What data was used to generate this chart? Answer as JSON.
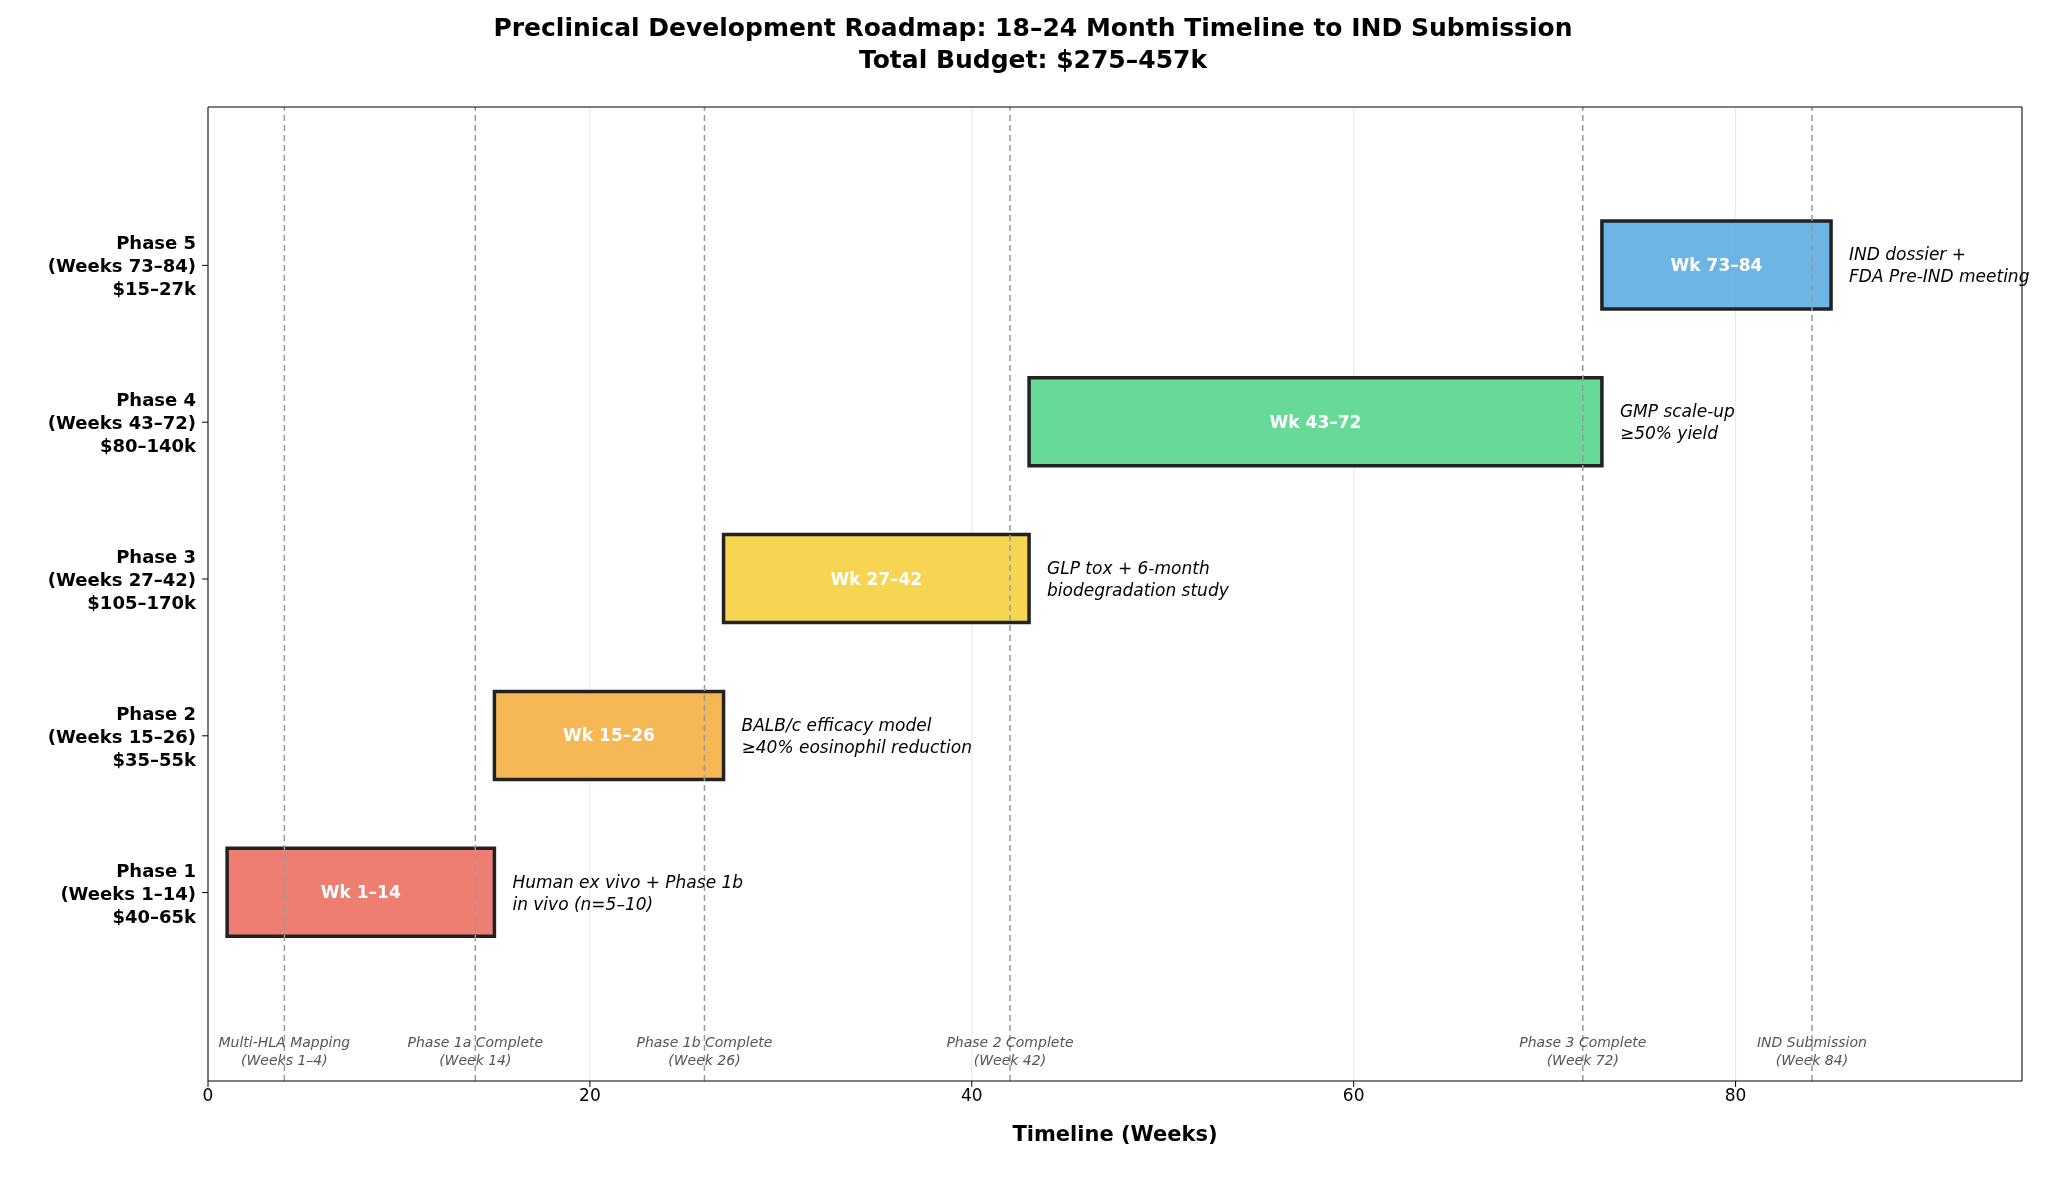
{
  "chart_data": {
    "type": "bar",
    "orientation": "horizontal",
    "title": "Preclinical Development Roadmap: 18–24 Month Timeline to IND Submission",
    "subtitle": "Total Budget: $275–457k",
    "xlabel": "Timeline (Weeks)",
    "categories": [
      "Phase 5\n(Weeks 73–84)\n$15–27k",
      "Phase 4\n(Weeks 43–72)\n$80–140k",
      "Phase 3\n(Weeks 27–42)\n$105–170k",
      "Phase 2\n(Weeks 15–26)\n$35–55k",
      "Phase 1\n(Weeks 1–14)\n$40–65k"
    ],
    "base": [
      73,
      43,
      27,
      15,
      1
    ],
    "values": [
      12,
      30,
      16,
      12,
      14
    ],
    "colors": [
      "#5dade2",
      "#58d68d",
      "#f4d03f",
      "#f5b041",
      "#ec7063"
    ],
    "value_labels": [
      "Wk 73–84",
      "Wk 43–72",
      "Wk 27–42",
      "Wk 15–26",
      "Wk 1–14"
    ],
    "xlim": [
      0,
      95
    ],
    "xticks": [
      0,
      20,
      40,
      60,
      80
    ],
    "grid": "x",
    "ref_lines": [
      {
        "axis": "x",
        "value": 4,
        "label": "Multi-HLA Mapping\n(Weeks 1–4)"
      },
      {
        "axis": "x",
        "value": 14,
        "label": "Phase 1a Complete\n(Week 14)"
      },
      {
        "axis": "x",
        "value": 26,
        "label": "Phase 1b Complete\n(Week 26)"
      },
      {
        "axis": "x",
        "value": 42,
        "label": "Phase 2 Complete\n(Week 42)"
      },
      {
        "axis": "x",
        "value": 72,
        "label": "Phase 3 Complete\n(Week 72)"
      },
      {
        "axis": "x",
        "value": 84,
        "label": "IND Submission\n(Week 84)"
      }
    ],
    "annotations": [
      {
        "text": "IND dossier +\nFDA Pre-IND meeting",
        "x": 85,
        "y": "Phase 5\n(Weeks 73–84)\n$15–27k"
      },
      {
        "text": "GMP scale-up\n≥50% yield",
        "x": 73,
        "y": "Phase 4\n(Weeks 43–72)\n$80–140k"
      },
      {
        "text": "GLP tox + 6-month\nbiodegradation study",
        "x": 43,
        "y": "Phase 3\n(Weeks 27–42)\n$105–170k"
      },
      {
        "text": "BALB/c efficacy model\n≥40% eosinophil reduction",
        "x": 27,
        "y": "Phase 2\n(Weeks 15–26)\n$35–55k"
      },
      {
        "text": "Human ex vivo + Phase 1b\nin vivo (n=5–10)",
        "x": 15,
        "y": "Phase 1\n(Weeks 1–14)\n$40–65k"
      }
    ]
  }
}
